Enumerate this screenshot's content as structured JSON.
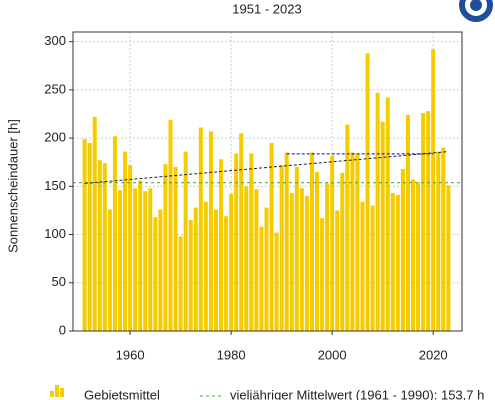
{
  "chart_data": {
    "type": "bar",
    "subtitle": "1951 - 2023",
    "ylabel": "Sonnenscheindauer [h]",
    "x": [
      1951,
      1952,
      1953,
      1954,
      1955,
      1956,
      1957,
      1958,
      1959,
      1960,
      1961,
      1962,
      1963,
      1964,
      1965,
      1966,
      1967,
      1968,
      1969,
      1970,
      1971,
      1972,
      1973,
      1974,
      1975,
      1976,
      1977,
      1978,
      1979,
      1980,
      1981,
      1982,
      1983,
      1984,
      1985,
      1986,
      1987,
      1988,
      1989,
      1990,
      1991,
      1992,
      1993,
      1994,
      1995,
      1996,
      1997,
      1998,
      1999,
      2000,
      2001,
      2002,
      2003,
      2004,
      2005,
      2006,
      2007,
      2008,
      2009,
      2010,
      2011,
      2012,
      2013,
      2014,
      2015,
      2016,
      2017,
      2018,
      2019,
      2020,
      2021,
      2022,
      2023
    ],
    "series": [
      {
        "name": "Gebietsmittel",
        "color": "#f5cc00",
        "values": [
          199,
          195,
          222,
          177,
          174,
          126,
          202,
          146,
          186,
          172,
          148,
          156,
          145,
          148,
          118,
          126,
          173,
          219,
          170,
          98,
          186,
          115,
          128,
          211,
          134,
          207,
          126,
          178,
          119,
          142,
          184,
          205,
          150,
          184,
          147,
          108,
          128,
          195,
          102,
          172,
          185,
          143,
          170,
          148,
          140,
          185,
          165,
          117,
          153,
          182,
          125,
          164,
          214,
          185,
          184,
          134,
          288,
          130,
          247,
          217,
          242,
          143,
          141,
          168,
          224,
          157,
          154,
          226,
          228,
          292,
          186,
          190,
          151
        ]
      }
    ],
    "reference_lines": [
      {
        "name": "vieljähriger Mittelwert (1961 - 1990): 153,7 h",
        "value": 153.7,
        "color": "#33aa33"
      }
    ],
    "trend_lines": [
      {
        "color": "#222222",
        "x": [
          1951,
          2023
        ],
        "values": [
          153,
          186
        ]
      },
      {
        "color": "#0000cc",
        "x": [
          1991,
          2020
        ],
        "values": [
          183.6,
          183.6
        ]
      }
    ],
    "xlim": [
      1948.7,
      2025.7
    ],
    "xticks": [
      1960,
      1980,
      2000,
      2020
    ],
    "ylim": [
      0,
      310
    ],
    "yticks": [
      0,
      50,
      100,
      150,
      200,
      250,
      300
    ],
    "grid": true
  }
}
